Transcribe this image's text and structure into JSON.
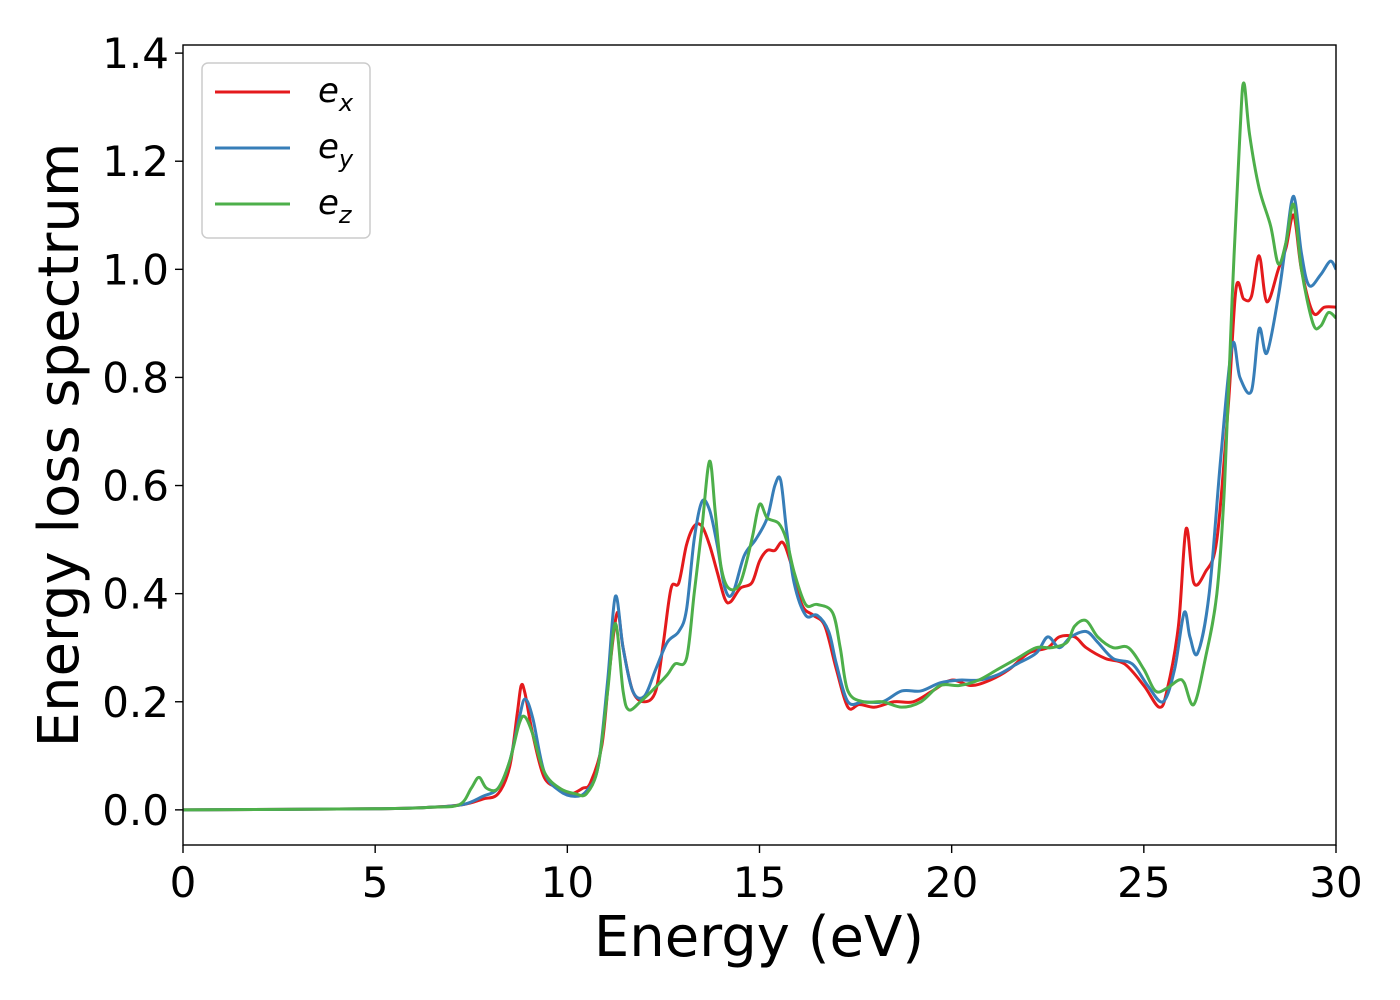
{
  "chart_data": {
    "type": "line",
    "title": "",
    "xlabel": "Energy (eV)",
    "ylabel": "Energy loss spectrum",
    "xlim": [
      0,
      30
    ],
    "ylim": [
      -0.065,
      1.415
    ],
    "xticks": [
      0,
      5,
      10,
      15,
      20,
      25,
      30
    ],
    "xtick_labels": [
      "0",
      "5",
      "10",
      "15",
      "20",
      "25",
      "30"
    ],
    "yticks": [
      0.0,
      0.2,
      0.4,
      0.6,
      0.8,
      1.0,
      1.2,
      1.4
    ],
    "ytick_labels": [
      "0.0",
      "0.2",
      "0.4",
      "0.6",
      "0.8",
      "1.0",
      "1.2",
      "1.4"
    ],
    "grid": false,
    "legend_position": "top-left",
    "series": [
      {
        "name": "e",
        "subscript": "x",
        "color": "#e41a1c",
        "points": [
          [
            0,
            0
          ],
          [
            5,
            0.002
          ],
          [
            6.5,
            0.005
          ],
          [
            7.3,
            0.01
          ],
          [
            7.8,
            0.02
          ],
          [
            8.2,
            0.03
          ],
          [
            8.5,
            0.08
          ],
          [
            8.7,
            0.18
          ],
          [
            8.8,
            0.23
          ],
          [
            8.9,
            0.215
          ],
          [
            9.1,
            0.14
          ],
          [
            9.4,
            0.06
          ],
          [
            9.8,
            0.04
          ],
          [
            10.1,
            0.03
          ],
          [
            10.4,
            0.04
          ],
          [
            10.6,
            0.05
          ],
          [
            10.9,
            0.12
          ],
          [
            11.1,
            0.26
          ],
          [
            11.3,
            0.365
          ],
          [
            11.45,
            0.3
          ],
          [
            11.7,
            0.22
          ],
          [
            12,
            0.2
          ],
          [
            12.3,
            0.22
          ],
          [
            12.5,
            0.31
          ],
          [
            12.7,
            0.41
          ],
          [
            12.9,
            0.42
          ],
          [
            13.1,
            0.49
          ],
          [
            13.3,
            0.525
          ],
          [
            13.5,
            0.525
          ],
          [
            13.7,
            0.49
          ],
          [
            13.9,
            0.44
          ],
          [
            14.1,
            0.39
          ],
          [
            14.25,
            0.385
          ],
          [
            14.5,
            0.41
          ],
          [
            14.8,
            0.42
          ],
          [
            15,
            0.46
          ],
          [
            15.2,
            0.48
          ],
          [
            15.4,
            0.48
          ],
          [
            15.6,
            0.495
          ],
          [
            15.8,
            0.46
          ],
          [
            16.1,
            0.38
          ],
          [
            16.4,
            0.36
          ],
          [
            16.7,
            0.34
          ],
          [
            17,
            0.26
          ],
          [
            17.3,
            0.19
          ],
          [
            17.6,
            0.195
          ],
          [
            18,
            0.19
          ],
          [
            18.5,
            0.2
          ],
          [
            19,
            0.2
          ],
          [
            19.5,
            0.22
          ],
          [
            20,
            0.24
          ],
          [
            20.5,
            0.23
          ],
          [
            21,
            0.24
          ],
          [
            21.5,
            0.26
          ],
          [
            22,
            0.29
          ],
          [
            22.5,
            0.3
          ],
          [
            22.8,
            0.32
          ],
          [
            23.2,
            0.32
          ],
          [
            23.5,
            0.3
          ],
          [
            24,
            0.28
          ],
          [
            24.5,
            0.27
          ],
          [
            25,
            0.23
          ],
          [
            25.4,
            0.19
          ],
          [
            25.6,
            0.22
          ],
          [
            25.9,
            0.34
          ],
          [
            26.1,
            0.52
          ],
          [
            26.3,
            0.42
          ],
          [
            26.6,
            0.44
          ],
          [
            26.9,
            0.5
          ],
          [
            27.2,
            0.75
          ],
          [
            27.4,
            0.965
          ],
          [
            27.6,
            0.945
          ],
          [
            27.8,
            0.95
          ],
          [
            28,
            1.025
          ],
          [
            28.2,
            0.94
          ],
          [
            28.5,
            1.0
          ],
          [
            28.7,
            1.04
          ],
          [
            28.9,
            1.1
          ],
          [
            29.1,
            1.0
          ],
          [
            29.4,
            0.92
          ],
          [
            29.7,
            0.93
          ],
          [
            30,
            0.93
          ]
        ]
      },
      {
        "name": "e",
        "subscript": "y",
        "color": "#377eb8",
        "points": [
          [
            0,
            0
          ],
          [
            5,
            0.002
          ],
          [
            6.5,
            0.005
          ],
          [
            7.3,
            0.01
          ],
          [
            7.8,
            0.025
          ],
          [
            8.2,
            0.04
          ],
          [
            8.5,
            0.09
          ],
          [
            8.75,
            0.17
          ],
          [
            8.9,
            0.205
          ],
          [
            9.1,
            0.17
          ],
          [
            9.4,
            0.07
          ],
          [
            9.8,
            0.035
          ],
          [
            10.2,
            0.025
          ],
          [
            10.5,
            0.035
          ],
          [
            10.8,
            0.08
          ],
          [
            11.05,
            0.24
          ],
          [
            11.25,
            0.395
          ],
          [
            11.45,
            0.3
          ],
          [
            11.7,
            0.22
          ],
          [
            12,
            0.21
          ],
          [
            12.3,
            0.26
          ],
          [
            12.6,
            0.31
          ],
          [
            12.9,
            0.33
          ],
          [
            13.1,
            0.37
          ],
          [
            13.3,
            0.5
          ],
          [
            13.5,
            0.57
          ],
          [
            13.7,
            0.555
          ],
          [
            13.9,
            0.49
          ],
          [
            14.1,
            0.41
          ],
          [
            14.3,
            0.4
          ],
          [
            14.6,
            0.47
          ],
          [
            14.9,
            0.5
          ],
          [
            15.2,
            0.54
          ],
          [
            15.4,
            0.6
          ],
          [
            15.55,
            0.61
          ],
          [
            15.7,
            0.52
          ],
          [
            15.9,
            0.42
          ],
          [
            16.2,
            0.36
          ],
          [
            16.5,
            0.36
          ],
          [
            16.8,
            0.33
          ],
          [
            17,
            0.27
          ],
          [
            17.3,
            0.2
          ],
          [
            17.7,
            0.2
          ],
          [
            18.2,
            0.2
          ],
          [
            18.7,
            0.22
          ],
          [
            19.2,
            0.22
          ],
          [
            19.7,
            0.235
          ],
          [
            20.2,
            0.24
          ],
          [
            20.7,
            0.24
          ],
          [
            21.2,
            0.25
          ],
          [
            21.7,
            0.27
          ],
          [
            22.2,
            0.29
          ],
          [
            22.5,
            0.32
          ],
          [
            22.8,
            0.3
          ],
          [
            23.1,
            0.32
          ],
          [
            23.5,
            0.33
          ],
          [
            23.8,
            0.31
          ],
          [
            24.2,
            0.28
          ],
          [
            24.7,
            0.27
          ],
          [
            25.1,
            0.23
          ],
          [
            25.5,
            0.2
          ],
          [
            25.8,
            0.26
          ],
          [
            26.05,
            0.365
          ],
          [
            26.2,
            0.32
          ],
          [
            26.4,
            0.29
          ],
          [
            26.7,
            0.4
          ],
          [
            27,
            0.65
          ],
          [
            27.3,
            0.86
          ],
          [
            27.5,
            0.8
          ],
          [
            27.8,
            0.775
          ],
          [
            28,
            0.89
          ],
          [
            28.2,
            0.845
          ],
          [
            28.5,
            0.95
          ],
          [
            28.7,
            1.05
          ],
          [
            28.9,
            1.135
          ],
          [
            29.1,
            1.03
          ],
          [
            29.3,
            0.97
          ],
          [
            29.6,
            0.99
          ],
          [
            29.85,
            1.015
          ],
          [
            30,
            1.0
          ]
        ]
      },
      {
        "name": "e",
        "subscript": "z",
        "color": "#4daf4a",
        "points": [
          [
            0,
            0
          ],
          [
            5,
            0.002
          ],
          [
            6.5,
            0.005
          ],
          [
            7.2,
            0.01
          ],
          [
            7.5,
            0.04
          ],
          [
            7.7,
            0.06
          ],
          [
            7.9,
            0.04
          ],
          [
            8.2,
            0.04
          ],
          [
            8.5,
            0.09
          ],
          [
            8.75,
            0.16
          ],
          [
            8.9,
            0.172
          ],
          [
            9.1,
            0.14
          ],
          [
            9.4,
            0.07
          ],
          [
            9.8,
            0.04
          ],
          [
            10.2,
            0.03
          ],
          [
            10.5,
            0.03
          ],
          [
            10.8,
            0.08
          ],
          [
            11.05,
            0.22
          ],
          [
            11.25,
            0.345
          ],
          [
            11.45,
            0.22
          ],
          [
            11.6,
            0.185
          ],
          [
            11.9,
            0.2
          ],
          [
            12.2,
            0.22
          ],
          [
            12.6,
            0.25
          ],
          [
            12.8,
            0.27
          ],
          [
            13.1,
            0.28
          ],
          [
            13.3,
            0.4
          ],
          [
            13.5,
            0.52
          ],
          [
            13.7,
            0.645
          ],
          [
            13.85,
            0.55
          ],
          [
            14,
            0.45
          ],
          [
            14.2,
            0.41
          ],
          [
            14.5,
            0.42
          ],
          [
            14.8,
            0.5
          ],
          [
            15,
            0.565
          ],
          [
            15.2,
            0.54
          ],
          [
            15.5,
            0.53
          ],
          [
            15.7,
            0.5
          ],
          [
            15.9,
            0.44
          ],
          [
            16.2,
            0.38
          ],
          [
            16.5,
            0.38
          ],
          [
            16.9,
            0.365
          ],
          [
            17.1,
            0.3
          ],
          [
            17.3,
            0.22
          ],
          [
            17.7,
            0.2
          ],
          [
            18.2,
            0.2
          ],
          [
            18.7,
            0.19
          ],
          [
            19.2,
            0.2
          ],
          [
            19.7,
            0.23
          ],
          [
            20.2,
            0.23
          ],
          [
            20.7,
            0.24
          ],
          [
            21.2,
            0.26
          ],
          [
            21.7,
            0.28
          ],
          [
            22.2,
            0.3
          ],
          [
            22.6,
            0.3
          ],
          [
            23,
            0.31
          ],
          [
            23.2,
            0.34
          ],
          [
            23.5,
            0.35
          ],
          [
            23.8,
            0.32
          ],
          [
            24.2,
            0.3
          ],
          [
            24.6,
            0.3
          ],
          [
            25,
            0.26
          ],
          [
            25.3,
            0.22
          ],
          [
            25.6,
            0.225
          ],
          [
            25.9,
            0.24
          ],
          [
            26.05,
            0.235
          ],
          [
            26.3,
            0.195
          ],
          [
            26.6,
            0.28
          ],
          [
            26.9,
            0.4
          ],
          [
            27.1,
            0.6
          ],
          [
            27.3,
            0.95
          ],
          [
            27.5,
            1.25
          ],
          [
            27.6,
            1.345
          ],
          [
            27.75,
            1.25
          ],
          [
            28,
            1.15
          ],
          [
            28.3,
            1.08
          ],
          [
            28.5,
            1.01
          ],
          [
            28.7,
            1.05
          ],
          [
            28.9,
            1.12
          ],
          [
            29.1,
            1.0
          ],
          [
            29.4,
            0.9
          ],
          [
            29.6,
            0.895
          ],
          [
            29.8,
            0.92
          ],
          [
            30,
            0.91
          ]
        ]
      }
    ]
  }
}
